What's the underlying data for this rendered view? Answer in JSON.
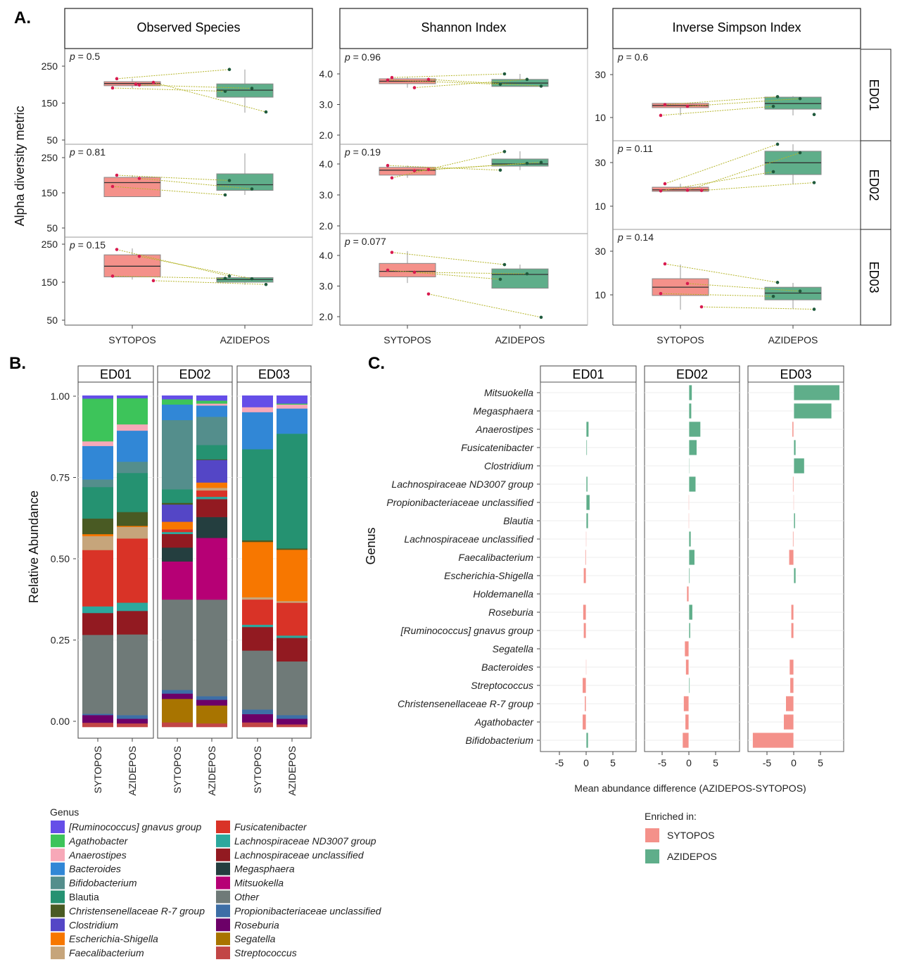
{
  "panel_labels": {
    "a": "A.",
    "b": "B.",
    "c": "C."
  },
  "colors": {
    "SYTOPOS": "#f4918a",
    "AZIDEPOS": "#5fae8a",
    "point_SYTOPOS": "#d81b4f",
    "point_AZIDEPOS": "#1f5a3c",
    "pair_line": "#b5b52a"
  },
  "chart_data": [
    {
      "type": "box",
      "ylabel": "Alpha diversity metric",
      "groups": [
        "SYTOPOS",
        "AZIDEPOS"
      ],
      "row_facets": [
        "ED01",
        "ED02",
        "ED03"
      ],
      "p_symbol": "p",
      "metrics": [
        {
          "name": "Observed Species",
          "ticks": [
            "50",
            "150",
            "250"
          ],
          "rows": [
            {
              "p": " = 0.5",
              "boxes": [
                {
                  "group": "SYTOPOS",
                  "low": 191,
                  "q1": 197,
                  "median": 203,
                  "q3": 208,
                  "high": 216,
                  "points": [
                    216,
                    199,
                    191,
                    206,
                    201
                  ]
                },
                {
                  "group": "AZIDEPOS",
                  "low": 124,
                  "q1": 166,
                  "median": 185,
                  "q3": 202,
                  "high": 241,
                  "points": [
                    241,
                    190,
                    182,
                    126
                  ]
                }
              ]
            },
            {
              "p": " = 0.81",
              "boxes": [
                {
                  "group": "SYTOPOS",
                  "low": 139,
                  "q1": 139,
                  "median": 179,
                  "q3": 194,
                  "high": 200,
                  "points": [
                    200,
                    191,
                    168
                  ]
                },
                {
                  "group": "AZIDEPOS",
                  "low": 144,
                  "q1": 157,
                  "median": 173,
                  "q3": 204,
                  "high": 262,
                  "points": [
                    185,
                    161,
                    144
                  ]
                }
              ]
            },
            {
              "p": " = 0.15",
              "boxes": [
                {
                  "group": "SYTOPOS",
                  "low": 157,
                  "q1": 164,
                  "median": 192,
                  "q3": 222,
                  "high": 239,
                  "points": [
                    236,
                    218,
                    166,
                    154
                  ]
                },
                {
                  "group": "AZIDEPOS",
                  "low": 143,
                  "q1": 150,
                  "median": 157,
                  "q3": 162,
                  "high": 165,
                  "points": [
                    166,
                    159,
                    160,
                    144
                  ]
                }
              ]
            }
          ]
        },
        {
          "name": "Shannon Index",
          "ticks": [
            "2.0",
            "3.0",
            "4.0"
          ],
          "rows": [
            {
              "p": " = 0.96",
              "boxes": [
                {
                  "group": "SYTOPOS",
                  "low": 3.55,
                  "q1": 3.68,
                  "median": 3.76,
                  "q3": 3.84,
                  "high": 3.88,
                  "points": [
                    3.88,
                    3.55,
                    3.8,
                    3.82
                  ]
                },
                {
                  "group": "AZIDEPOS",
                  "low": 3.58,
                  "q1": 3.59,
                  "median": 3.7,
                  "q3": 3.82,
                  "high": 4.0,
                  "points": [
                    4.0,
                    3.82,
                    3.66,
                    3.6
                  ]
                }
              ]
            },
            {
              "p": " = 0.19",
              "boxes": [
                {
                  "group": "SYTOPOS",
                  "low": 3.55,
                  "q1": 3.64,
                  "median": 3.8,
                  "q3": 3.89,
                  "high": 3.95,
                  "points": [
                    3.55,
                    3.78,
                    3.95,
                    3.82
                  ]
                },
                {
                  "group": "AZIDEPOS",
                  "low": 3.8,
                  "q1": 3.93,
                  "median": 4.0,
                  "q3": 4.16,
                  "high": 4.41,
                  "points": [
                    4.4,
                    4.02,
                    3.8,
                    4.05
                  ]
                }
              ]
            },
            {
              "p": " = 0.077",
              "boxes": [
                {
                  "group": "SYTOPOS",
                  "low": 3.1,
                  "q1": 3.3,
                  "median": 3.48,
                  "q3": 3.74,
                  "high": 4.14,
                  "points": [
                    4.1,
                    3.45,
                    3.52,
                    2.74
                  ]
                },
                {
                  "group": "AZIDEPOS",
                  "low": 2.93,
                  "q1": 2.93,
                  "median": 3.38,
                  "q3": 3.56,
                  "high": 3.7,
                  "points": [
                    3.7,
                    3.4,
                    3.22,
                    1.98
                  ]
                }
              ]
            }
          ]
        },
        {
          "name": "Inverse Simpson Index",
          "ticks": [
            "10",
            "30"
          ],
          "rows": [
            {
              "p": " = 0.6",
              "boxes": [
                {
                  "group": "SYTOPOS",
                  "low": 11.0,
                  "q1": 14.6,
                  "median": 15.6,
                  "q3": 16.6,
                  "high": 16.6,
                  "points": [
                    16.0,
                    15.2,
                    11.0
                  ]
                },
                {
                  "group": "AZIDEPOS",
                  "low": 11.0,
                  "q1": 13.9,
                  "median": 16.5,
                  "q3": 19.5,
                  "high": 20.0,
                  "points": [
                    19.7,
                    18.8,
                    15.2,
                    11.4
                  ]
                }
              ]
            },
            {
              "p": " = 0.11",
              "boxes": [
                {
                  "group": "SYTOPOS",
                  "low": 16.8,
                  "q1": 16.8,
                  "median": 17.5,
                  "q3": 18.7,
                  "high": 20.3,
                  "points": [
                    20.3,
                    17.3,
                    17.0,
                    17.2
                  ]
                },
                {
                  "group": "AZIDEPOS",
                  "low": 20.3,
                  "q1": 24.5,
                  "median": 29.9,
                  "q3": 35.2,
                  "high": 38.4,
                  "points": [
                    38.4,
                    34.5,
                    25.8,
                    20.8
                  ]
                }
              ]
            },
            {
              "p": " = 0.14",
              "boxes": [
                {
                  "group": "SYTOPOS",
                  "low": 3.2,
                  "q1": 9.7,
                  "median": 13.5,
                  "q3": 17.4,
                  "high": 23.9,
                  "points": [
                    24.2,
                    15.2,
                    10.6,
                    4.5
                  ]
                },
                {
                  "group": "AZIDEPOS",
                  "low": 3.5,
                  "q1": 7.7,
                  "median": 10.8,
                  "q3": 13.5,
                  "high": 15.5,
                  "points": [
                    15.7,
                    11.7,
                    9.3,
                    3.4
                  ]
                }
              ]
            }
          ]
        }
      ]
    },
    {
      "type": "bar",
      "stacked": true,
      "ylabel": "Relative Abundance",
      "yticks": [
        "0.00",
        "0.25",
        "0.50",
        "0.75",
        "1.00"
      ],
      "legend_title": "Genus",
      "genera": [
        {
          "name": "[Ruminococcus] gnavus group",
          "italic": true,
          "color": "#654ee8"
        },
        {
          "name": "Agathobacter",
          "italic": true,
          "color": "#3dc45a"
        },
        {
          "name": "Anaerostipes",
          "italic": true,
          "color": "#f7a8b8"
        },
        {
          "name": "Bacteroides",
          "italic": true,
          "color": "#3187d6"
        },
        {
          "name": "Bifidobacterium",
          "italic": true,
          "color": "#548e8c"
        },
        {
          "name": "Blautia",
          "italic": false,
          "color": "#259271"
        },
        {
          "name": "Christensenellaceae R-7 group",
          "italic": true,
          "color": "#495a23"
        },
        {
          "name": "Clostridium",
          "italic": true,
          "color": "#5446c6"
        },
        {
          "name": "Escherichia-Shigella",
          "italic": true,
          "color": "#f77700"
        },
        {
          "name": "Faecalibacterium",
          "italic": true,
          "color": "#c6a57b"
        },
        {
          "name": "Fusicatenibacter",
          "italic": true,
          "color": "#d93327"
        },
        {
          "name": "Lachnospiraceae ND3007 group",
          "italic": true,
          "color": "#2ca89d"
        },
        {
          "name": "Lachnospiraceae unclassified",
          "italic": true,
          "color": "#921a21"
        },
        {
          "name": "Megasphaera",
          "italic": true,
          "color": "#243e3f"
        },
        {
          "name": "Mitsuokella",
          "italic": true,
          "color": "#b60075"
        },
        {
          "name": "Other",
          "italic": true,
          "color": "#6f7a78"
        },
        {
          "name": "Propionibacteriaceae unclassified",
          "italic": true,
          "color": "#3d6ea6"
        },
        {
          "name": "Roseburia",
          "italic": true,
          "color": "#6c0068"
        },
        {
          "name": "Segatella",
          "italic": true,
          "color": "#a87400"
        },
        {
          "name": "Streptococcus",
          "italic": true,
          "color": "#c24646"
        }
      ],
      "facets": [
        {
          "name": "ED01",
          "bars": [
            {
              "group": "SYTOPOS",
              "values": [
                0.9,
                12.9,
                1.4,
                10.1,
                2.3,
                9.5,
                4.7,
                0,
                0.6,
                4.2,
                17.0,
                2.0,
                6.6,
                0,
                0,
                23.8,
                0.4,
                2.3,
                0,
                1.3
              ]
            },
            {
              "group": "AZIDEPOS",
              "values": [
                0.8,
                7.9,
                1.9,
                9.4,
                3.4,
                11.8,
                4.2,
                0,
                0.3,
                3.5,
                19.4,
                2.5,
                7.1,
                0,
                0,
                24.4,
                1.1,
                1.4,
                0,
                1.1
              ]
            }
          ]
        },
        {
          "name": "ED02",
          "bars": [
            {
              "group": "SYTOPOS",
              "values": [
                1.1,
                1.6,
                0,
                4.7,
                20.9,
                4.1,
                0.5,
                5.2,
                2.3,
                0,
                0.8,
                0.6,
                4.1,
                4.2,
                11.5,
                27.3,
                1.1,
                1.6,
                7.1,
                1.4
              ]
            },
            {
              "group": "AZIDEPOS",
              "values": [
                1.5,
                0.9,
                0.6,
                3.4,
                8.5,
                4.3,
                0.2,
                6.8,
                1.6,
                0.8,
                1.9,
                0.7,
                5.4,
                6.3,
                18.6,
                29.1,
                1.1,
                1.7,
                5.4,
                1.1
              ]
            }
          ]
        },
        {
          "name": "ED03",
          "bars": [
            {
              "group": "SYTOPOS",
              "values": [
                3.5,
                0,
                1.5,
                11.2,
                0,
                27.5,
                0.5,
                0,
                16.7,
                0.7,
                7.6,
                0.7,
                7.1,
                0,
                0,
                17.8,
                1.4,
                2.5,
                0,
                1.4
              ]
            },
            {
              "group": "AZIDEPOS",
              "values": [
                2.4,
                0.3,
                1.2,
                7.6,
                0,
                34.6,
                0.4,
                0,
                15.5,
                0.5,
                9.9,
                0.7,
                7.1,
                0,
                0,
                16.2,
                1.1,
                1.7,
                0,
                0.8
              ]
            }
          ]
        }
      ]
    },
    {
      "type": "bar",
      "orientation": "horizontal",
      "xlabel": "Mean abundance difference  (AZIDEPOS-SYTOPOS)",
      "ylabel": "Genus",
      "xticks": [
        "-5",
        "0",
        "5"
      ],
      "legend_title": "Enriched in:",
      "legend": [
        "SYTOPOS",
        "AZIDEPOS"
      ],
      "categories": [
        "Mitsuokella",
        "Megasphaera",
        "Anaerostipes",
        "Fusicatenibacter",
        "Clostridium",
        "Lachnospiraceae ND3007 group",
        "Propionibacteriaceae unclassified",
        "Blautia",
        "Lachnospiraceae unclassified",
        "Faecalibacterium",
        "Escherichia-Shigella",
        "Holdemanella",
        "Roseburia",
        "[Ruminococcus] gnavus group",
        "Segatella",
        "Bacteroides",
        "Streptococcus",
        "Christensenellaceae R-7 group",
        "Agathobacter",
        "Bifidobacterium"
      ],
      "series": [
        {
          "facet": "ED01",
          "values": [
            0,
            0,
            0.5,
            0.2,
            0,
            0.3,
            0.7,
            0.4,
            -0.1,
            -0.2,
            -0.5,
            0,
            -0.6,
            -0.5,
            0,
            -0.1,
            -0.7,
            -0.3,
            -0.7,
            0.4
          ]
        },
        {
          "facet": "ED02",
          "values": [
            0.6,
            0.5,
            2.2,
            1.5,
            0.1,
            1.3,
            -0.1,
            -0.1,
            0.4,
            1.1,
            0.2,
            -0.4,
            0.7,
            0.3,
            -0.8,
            -0.6,
            0.2,
            -1.0,
            -0.7,
            -1.2
          ]
        },
        {
          "facet": "ED03",
          "values": [
            8.6,
            7.1,
            -0.3,
            0.4,
            2.0,
            -0.2,
            -0.1,
            0.3,
            -0.2,
            -0.9,
            0.4,
            0,
            -0.5,
            -0.5,
            0,
            -0.8,
            -0.7,
            -1.5,
            -1.9,
            -7.7
          ]
        }
      ]
    }
  ]
}
